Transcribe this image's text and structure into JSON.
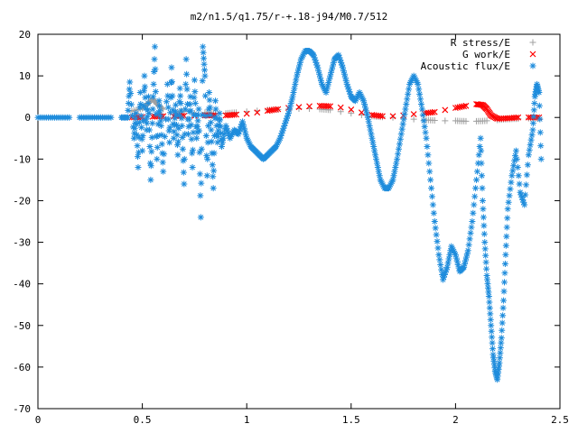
{
  "chart_data": {
    "type": "scatter",
    "title": "m2/n1.5/q1.75/r-+.18-j94/M0.7/512",
    "xlabel": "",
    "ylabel": "",
    "xlim": [
      0,
      2.5
    ],
    "ylim": [
      -70,
      20
    ],
    "x_ticks": [
      "0",
      "0.5",
      "1",
      "1.5",
      "2",
      "2.5"
    ],
    "y_ticks": [
      "20",
      "10",
      "0",
      "-10",
      "-20",
      "-30",
      "-40",
      "-50",
      "-60",
      "-70"
    ],
    "grid": false,
    "legend_position": "top-right",
    "series": [
      {
        "name": "R stress/E",
        "marker": "plus",
        "color": "#a0a0a0",
        "points": [
          [
            0.45,
            1.5
          ],
          [
            0.5,
            2.2
          ],
          [
            0.53,
            3.5
          ],
          [
            0.55,
            4.5
          ],
          [
            0.57,
            3.2
          ],
          [
            0.6,
            2.0
          ],
          [
            0.65,
            1.2
          ],
          [
            0.7,
            1.5
          ],
          [
            0.75,
            1.0
          ],
          [
            0.8,
            1.2
          ],
          [
            0.85,
            1.0
          ],
          [
            0.9,
            1.0
          ],
          [
            0.95,
            1.2
          ],
          [
            1.0,
            1.4
          ],
          [
            1.05,
            1.6
          ],
          [
            1.1,
            1.8
          ],
          [
            1.15,
            1.9
          ],
          [
            1.2,
            2.0
          ],
          [
            1.25,
            2.1
          ],
          [
            1.3,
            2.1
          ],
          [
            1.35,
            2.0
          ],
          [
            1.4,
            1.8
          ],
          [
            1.45,
            1.4
          ],
          [
            1.5,
            1.0
          ],
          [
            1.55,
            0.6
          ],
          [
            1.6,
            0.3
          ],
          [
            1.65,
            0.1
          ],
          [
            1.7,
            0.0
          ],
          [
            1.75,
            -0.2
          ],
          [
            1.8,
            -0.4
          ],
          [
            1.85,
            -0.6
          ],
          [
            1.9,
            -0.7
          ],
          [
            1.95,
            -0.8
          ],
          [
            2.0,
            -0.8
          ],
          [
            2.05,
            -0.9
          ],
          [
            2.1,
            -0.9
          ],
          [
            2.15,
            -0.8
          ],
          [
            2.2,
            -0.6
          ],
          [
            2.25,
            -0.4
          ],
          [
            2.3,
            -0.3
          ],
          [
            2.35,
            -0.2
          ],
          [
            2.4,
            -0.2
          ]
        ]
      },
      {
        "name": "G work/E",
        "marker": "x",
        "color": "#ff0000",
        "points": [
          [
            0.45,
            0.0
          ],
          [
            0.5,
            0.1
          ],
          [
            0.55,
            0.2
          ],
          [
            0.6,
            0.3
          ],
          [
            0.65,
            0.3
          ],
          [
            0.7,
            0.4
          ],
          [
            0.75,
            0.4
          ],
          [
            0.8,
            0.5
          ],
          [
            0.85,
            0.5
          ],
          [
            0.9,
            0.5
          ],
          [
            0.95,
            0.7
          ],
          [
            1.0,
            0.9
          ],
          [
            1.05,
            1.2
          ],
          [
            1.1,
            1.6
          ],
          [
            1.15,
            2.0
          ],
          [
            1.2,
            2.3
          ],
          [
            1.25,
            2.5
          ],
          [
            1.3,
            2.7
          ],
          [
            1.35,
            2.8
          ],
          [
            1.4,
            2.7
          ],
          [
            1.45,
            2.4
          ],
          [
            1.5,
            1.9
          ],
          [
            1.55,
            1.2
          ],
          [
            1.6,
            0.6
          ],
          [
            1.65,
            0.3
          ],
          [
            1.7,
            0.3
          ],
          [
            1.75,
            0.5
          ],
          [
            1.8,
            0.8
          ],
          [
            1.85,
            1.0
          ],
          [
            1.9,
            1.3
          ],
          [
            1.95,
            1.8
          ],
          [
            2.0,
            2.3
          ],
          [
            2.05,
            2.8
          ],
          [
            2.1,
            3.2
          ],
          [
            2.13,
            3.0
          ],
          [
            2.15,
            2.0
          ],
          [
            2.17,
            0.5
          ],
          [
            2.2,
            -0.3
          ],
          [
            2.25,
            -0.2
          ],
          [
            2.3,
            0.0
          ],
          [
            2.35,
            0.0
          ],
          [
            2.4,
            0.0
          ]
        ]
      },
      {
        "name": "Acoustic flux/E",
        "marker": "star",
        "color": "#1e8cdc",
        "points": [
          [
            0.0,
            0.0
          ],
          [
            0.05,
            0.0
          ],
          [
            0.1,
            0.0
          ],
          [
            0.15,
            0.0
          ],
          [
            0.2,
            0.0
          ],
          [
            0.25,
            0.0
          ],
          [
            0.3,
            0.0
          ],
          [
            0.35,
            0.0
          ],
          [
            0.4,
            0.0
          ],
          [
            0.43,
            0.0
          ],
          [
            0.44,
            8.5
          ],
          [
            0.46,
            -5.0
          ],
          [
            0.47,
            1.0
          ],
          [
            0.48,
            -12.0
          ],
          [
            0.49,
            6.0
          ],
          [
            0.5,
            -8.0
          ],
          [
            0.51,
            10.0
          ],
          [
            0.52,
            -3.0
          ],
          [
            0.53,
            5.0
          ],
          [
            0.54,
            -15.0
          ],
          [
            0.55,
            2.0
          ],
          [
            0.56,
            17.0
          ],
          [
            0.57,
            -10.0
          ],
          [
            0.58,
            4.0
          ],
          [
            0.59,
            -2.0
          ],
          [
            0.6,
            -13.0
          ],
          [
            0.62,
            8.0
          ],
          [
            0.63,
            -6.0
          ],
          [
            0.64,
            12.0
          ],
          [
            0.65,
            -5.0
          ],
          [
            0.66,
            3.0
          ],
          [
            0.67,
            -9.0
          ],
          [
            0.68,
            7.0
          ],
          [
            0.69,
            -2.0
          ],
          [
            0.7,
            -16.0
          ],
          [
            0.71,
            14.0
          ],
          [
            0.72,
            -4.0
          ],
          [
            0.73,
            5.0
          ],
          [
            0.74,
            -12.0
          ],
          [
            0.75,
            9.0
          ],
          [
            0.76,
            -5.0
          ],
          [
            0.77,
            2.0
          ],
          [
            0.78,
            -24.0
          ],
          [
            0.79,
            17.0
          ],
          [
            0.8,
            10.0
          ],
          [
            0.81,
            -14.0
          ],
          [
            0.82,
            6.0
          ],
          [
            0.83,
            -3.0
          ],
          [
            0.84,
            -17.0
          ],
          [
            0.85,
            4.0
          ],
          [
            0.86,
            -6.0
          ],
          [
            0.87,
            1.0
          ],
          [
            0.88,
            -7.0
          ],
          [
            0.9,
            -2.0
          ],
          [
            0.92,
            -5.0
          ],
          [
            0.94,
            -3.0
          ],
          [
            0.96,
            -4.0
          ],
          [
            0.98,
            -1.0
          ],
          [
            1.0,
            -5.0
          ],
          [
            1.02,
            -7.0
          ],
          [
            1.04,
            -8.0
          ],
          [
            1.06,
            -9.0
          ],
          [
            1.08,
            -10.0
          ],
          [
            1.1,
            -9.0
          ],
          [
            1.12,
            -8.0
          ],
          [
            1.14,
            -7.0
          ],
          [
            1.16,
            -5.0
          ],
          [
            1.18,
            -2.0
          ],
          [
            1.2,
            1.0
          ],
          [
            1.22,
            5.0
          ],
          [
            1.24,
            10.0
          ],
          [
            1.26,
            14.0
          ],
          [
            1.28,
            16.0
          ],
          [
            1.3,
            16.0
          ],
          [
            1.32,
            15.0
          ],
          [
            1.34,
            12.0
          ],
          [
            1.36,
            8.0
          ],
          [
            1.38,
            6.0
          ],
          [
            1.4,
            10.0
          ],
          [
            1.42,
            14.0
          ],
          [
            1.44,
            15.0
          ],
          [
            1.46,
            12.0
          ],
          [
            1.48,
            8.0
          ],
          [
            1.5,
            5.0
          ],
          [
            1.52,
            4.0
          ],
          [
            1.54,
            6.0
          ],
          [
            1.56,
            4.0
          ],
          [
            1.58,
            0.0
          ],
          [
            1.6,
            -5.0
          ],
          [
            1.62,
            -10.0
          ],
          [
            1.64,
            -15.0
          ],
          [
            1.66,
            -17.0
          ],
          [
            1.68,
            -17.0
          ],
          [
            1.7,
            -15.0
          ],
          [
            1.72,
            -10.0
          ],
          [
            1.74,
            -4.0
          ],
          [
            1.76,
            2.0
          ],
          [
            1.78,
            8.0
          ],
          [
            1.8,
            10.0
          ],
          [
            1.82,
            8.0
          ],
          [
            1.84,
            2.0
          ],
          [
            1.86,
            -5.0
          ],
          [
            1.88,
            -15.0
          ],
          [
            1.9,
            -25.0
          ],
          [
            1.92,
            -33.0
          ],
          [
            1.94,
            -39.0
          ],
          [
            1.96,
            -36.0
          ],
          [
            1.98,
            -31.0
          ],
          [
            2.0,
            -33.0
          ],
          [
            2.02,
            -37.0
          ],
          [
            2.04,
            -36.0
          ],
          [
            2.06,
            -32.0
          ],
          [
            2.08,
            -25.0
          ],
          [
            2.1,
            -15.0
          ],
          [
            2.12,
            -5.0
          ],
          [
            2.13,
            -20.0
          ],
          [
            2.14,
            -30.0
          ],
          [
            2.15,
            -38.0
          ],
          [
            2.16,
            -43.0
          ],
          [
            2.17,
            -50.0
          ],
          [
            2.18,
            -57.0
          ],
          [
            2.19,
            -61.0
          ],
          [
            2.2,
            -63.0
          ],
          [
            2.21,
            -59.0
          ],
          [
            2.22,
            -53.0
          ],
          [
            2.23,
            -44.0
          ],
          [
            2.24,
            -33.0
          ],
          [
            2.25,
            -22.0
          ],
          [
            2.27,
            -14.0
          ],
          [
            2.29,
            -8.0
          ],
          [
            2.31,
            -18.0
          ],
          [
            2.33,
            -21.0
          ],
          [
            2.35,
            -9.0
          ],
          [
            2.37,
            -3.0
          ],
          [
            2.38,
            5.0
          ],
          [
            2.39,
            8.0
          ],
          [
            2.4,
            6.0
          ],
          [
            2.41,
            -10.0
          ]
        ]
      }
    ]
  }
}
